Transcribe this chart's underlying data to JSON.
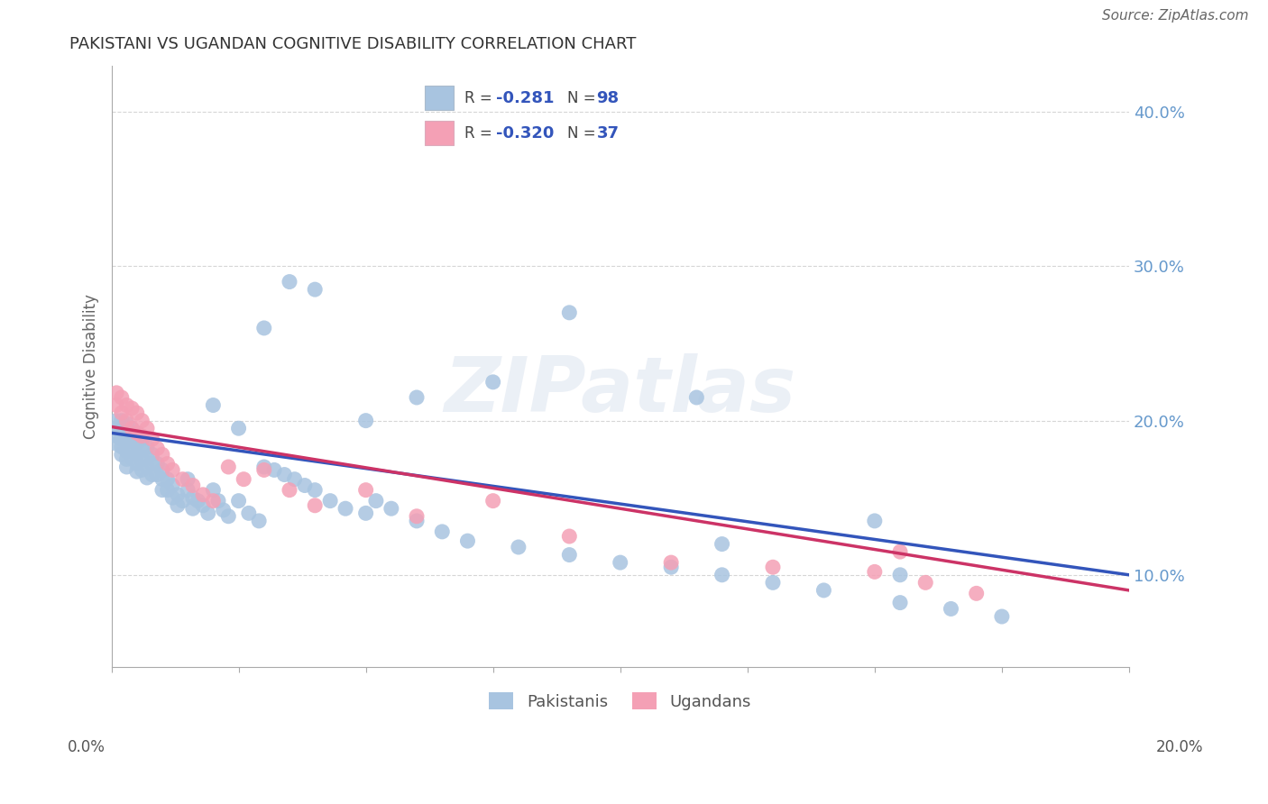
{
  "title": "PAKISTANI VS UGANDAN COGNITIVE DISABILITY CORRELATION CHART",
  "source": "Source: ZipAtlas.com",
  "ylabel": "Cognitive Disability",
  "r_pakistani": -0.281,
  "n_pakistani": 98,
  "r_ugandan": -0.32,
  "n_ugandan": 37,
  "xlim": [
    0.0,
    0.2
  ],
  "ylim": [
    0.04,
    0.43
  ],
  "yticks": [
    0.1,
    0.2,
    0.3,
    0.4
  ],
  "ytick_labels": [
    "10.0%",
    "20.0%",
    "30.0%",
    "40.0%"
  ],
  "pakistani_color": "#a8c4e0",
  "ugandan_color": "#f4a0b5",
  "line_pakistani_color": "#3355bb",
  "line_ugandan_color": "#cc3366",
  "background_color": "#ffffff",
  "watermark": "ZIPatlas",
  "pakistani_x": [
    0.001,
    0.001,
    0.001,
    0.001,
    0.002,
    0.002,
    0.002,
    0.002,
    0.002,
    0.003,
    0.003,
    0.003,
    0.003,
    0.003,
    0.003,
    0.004,
    0.004,
    0.004,
    0.004,
    0.005,
    0.005,
    0.005,
    0.005,
    0.005,
    0.006,
    0.006,
    0.006,
    0.006,
    0.007,
    0.007,
    0.007,
    0.007,
    0.008,
    0.008,
    0.008,
    0.009,
    0.009,
    0.01,
    0.01,
    0.01,
    0.011,
    0.011,
    0.012,
    0.012,
    0.013,
    0.013,
    0.014,
    0.015,
    0.015,
    0.016,
    0.016,
    0.017,
    0.018,
    0.019,
    0.02,
    0.021,
    0.022,
    0.023,
    0.025,
    0.027,
    0.029,
    0.03,
    0.032,
    0.034,
    0.036,
    0.038,
    0.04,
    0.043,
    0.046,
    0.05,
    0.052,
    0.055,
    0.06,
    0.065,
    0.07,
    0.08,
    0.09,
    0.1,
    0.11,
    0.12,
    0.13,
    0.14,
    0.155,
    0.165,
    0.175,
    0.02,
    0.03,
    0.035,
    0.04,
    0.06,
    0.075,
    0.09,
    0.115,
    0.15,
    0.155,
    0.025,
    0.05,
    0.12
  ],
  "pakistani_y": [
    0.2,
    0.195,
    0.19,
    0.185,
    0.2,
    0.195,
    0.188,
    0.183,
    0.178,
    0.198,
    0.192,
    0.186,
    0.18,
    0.175,
    0.17,
    0.195,
    0.188,
    0.182,
    0.176,
    0.192,
    0.185,
    0.178,
    0.172,
    0.167,
    0.188,
    0.182,
    0.175,
    0.168,
    0.183,
    0.176,
    0.17,
    0.163,
    0.178,
    0.172,
    0.165,
    0.172,
    0.165,
    0.168,
    0.162,
    0.155,
    0.162,
    0.155,
    0.158,
    0.15,
    0.152,
    0.145,
    0.148,
    0.162,
    0.155,
    0.15,
    0.143,
    0.148,
    0.145,
    0.14,
    0.155,
    0.148,
    0.142,
    0.138,
    0.148,
    0.14,
    0.135,
    0.17,
    0.168,
    0.165,
    0.162,
    0.158,
    0.155,
    0.148,
    0.143,
    0.14,
    0.148,
    0.143,
    0.135,
    0.128,
    0.122,
    0.118,
    0.113,
    0.108,
    0.105,
    0.1,
    0.095,
    0.09,
    0.082,
    0.078,
    0.073,
    0.21,
    0.26,
    0.29,
    0.285,
    0.215,
    0.225,
    0.27,
    0.215,
    0.135,
    0.1,
    0.195,
    0.2,
    0.12
  ],
  "ugandan_x": [
    0.001,
    0.001,
    0.002,
    0.002,
    0.003,
    0.003,
    0.004,
    0.004,
    0.005,
    0.005,
    0.006,
    0.006,
    0.007,
    0.008,
    0.009,
    0.01,
    0.011,
    0.012,
    0.014,
    0.016,
    0.018,
    0.02,
    0.023,
    0.026,
    0.03,
    0.035,
    0.04,
    0.05,
    0.06,
    0.075,
    0.09,
    0.11,
    0.13,
    0.15,
    0.155,
    0.16,
    0.17
  ],
  "ugandan_y": [
    0.218,
    0.21,
    0.215,
    0.205,
    0.21,
    0.2,
    0.208,
    0.195,
    0.205,
    0.192,
    0.2,
    0.19,
    0.195,
    0.188,
    0.182,
    0.178,
    0.172,
    0.168,
    0.162,
    0.158,
    0.152,
    0.148,
    0.17,
    0.162,
    0.168,
    0.155,
    0.145,
    0.155,
    0.138,
    0.148,
    0.125,
    0.108,
    0.105,
    0.102,
    0.115,
    0.095,
    0.088
  ],
  "line_p_x0": 0.0,
  "line_p_y0": 0.192,
  "line_p_x1": 0.2,
  "line_p_y1": 0.1,
  "line_u_x0": 0.0,
  "line_u_y0": 0.196,
  "line_u_x1": 0.2,
  "line_u_y1": 0.09
}
